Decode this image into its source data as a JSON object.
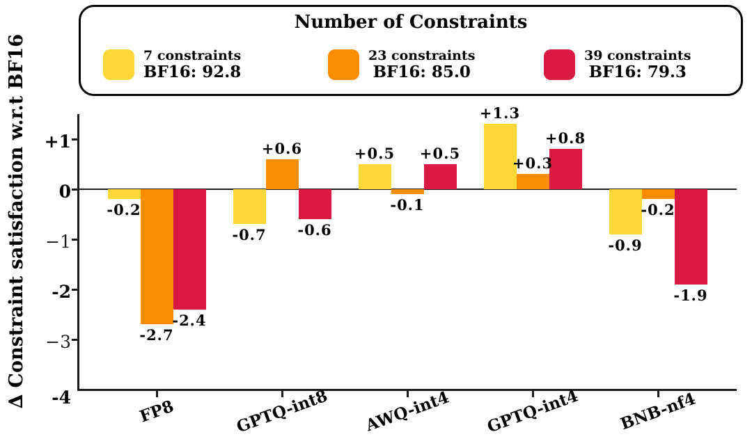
{
  "y_axis_label": "∆ Constraint satisfaction w.r.t BF16",
  "legend": {
    "title": "Number of Constraints",
    "entries": [
      {
        "label": "7 constraints",
        "bf16": "BF16: 92.8",
        "color": "#FBD737"
      },
      {
        "label": "23 constraints",
        "bf16": "BF16: 85.0",
        "color": "#FB8D05"
      },
      {
        "label": "39 constraints",
        "bf16": "BF16: 79.3",
        "color": "#DA1A42"
      }
    ]
  },
  "chart_data": {
    "type": "bar",
    "title": "Number of Constraints",
    "ylabel": "∆ Constraint satisfaction w.r.t BF16",
    "xlabel": "",
    "categories": [
      "FP8",
      "GPTQ-int8",
      "AWQ-int4",
      "GPTQ-int4",
      "BNB-nf4"
    ],
    "series": [
      {
        "name": "7 constraints",
        "bf16_score": 92.8,
        "color": "#FBD737",
        "values": [
          -0.2,
          -0.7,
          0.5,
          1.3,
          -0.9
        ]
      },
      {
        "name": "23 constraints",
        "bf16_score": 85.0,
        "color": "#FB8D05",
        "values": [
          -2.7,
          0.6,
          -0.1,
          0.3,
          -0.2
        ]
      },
      {
        "name": "39 constraints",
        "bf16_score": 79.3,
        "color": "#DA1A42",
        "values": [
          -2.4,
          -0.6,
          0.5,
          0.8,
          -1.9
        ]
      }
    ],
    "ylim": [
      -4,
      1.5
    ],
    "yticks": [
      {
        "value": 1,
        "label": "+1",
        "bold": true
      },
      {
        "value": 0,
        "label": "0",
        "bold": true
      },
      {
        "value": -1,
        "label": "−1",
        "bold": false
      },
      {
        "value": -2,
        "label": "-2",
        "bold": true
      },
      {
        "value": -3,
        "label": "−3",
        "bold": false
      },
      {
        "value": -4,
        "label": "-4",
        "bold": true
      }
    ],
    "grid": false,
    "legend_position": "top",
    "bar_label_format": "signed_one_decimal"
  }
}
